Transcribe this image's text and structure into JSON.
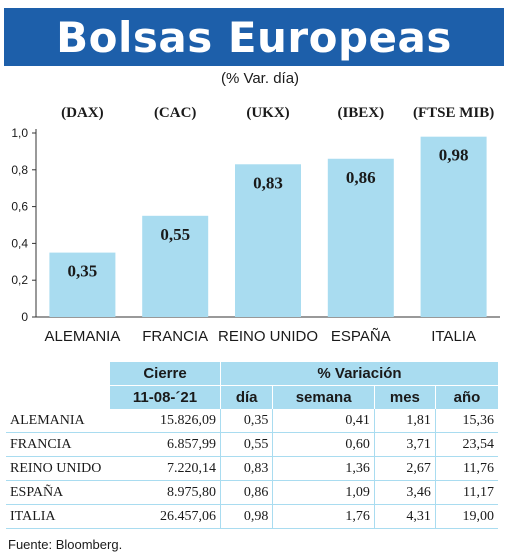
{
  "title": "Bolsas Europeas",
  "subtitle": "(% Var. día)",
  "chart_data": {
    "type": "bar",
    "title": "Bolsas Europeas",
    "subtitle": "(% Var. día)",
    "categories": [
      "ALEMANIA",
      "FRANCIA",
      "REINO UNIDO",
      "ESPAÑA",
      "ITALIA"
    ],
    "index_codes": [
      "(DAX)",
      "(CAC)",
      "(UKX)",
      "(IBEX)",
      "(FTSE MIB)"
    ],
    "values": [
      0.35,
      0.55,
      0.83,
      0.86,
      0.98
    ],
    "value_labels": [
      "0,35",
      "0,55",
      "0,83",
      "0,86",
      "0,98"
    ],
    "ylim": [
      0,
      1.0
    ],
    "yticks": [
      0,
      0.2,
      0.4,
      0.6,
      0.8,
      1.0
    ],
    "ytick_labels": [
      "0",
      "0,2",
      "0,4",
      "0,6",
      "0,8",
      "1,0"
    ],
    "bar_color": "#a9dcf0",
    "grid": false,
    "legend": "none"
  },
  "table": {
    "header_cierre": "Cierre",
    "header_variacion": "% Variación",
    "date": "11-08-´21",
    "columns": [
      "día",
      "semana",
      "mes",
      "año"
    ],
    "rows": [
      {
        "name": "ALEMANIA",
        "cierre": "15.826,09",
        "dia": "0,35",
        "semana": "0,41",
        "mes": "1,81",
        "ano": "15,36"
      },
      {
        "name": "FRANCIA",
        "cierre": "6.857,99",
        "dia": "0,55",
        "semana": "0,60",
        "mes": "3,71",
        "ano": "23,54"
      },
      {
        "name": "REINO UNIDO",
        "cierre": "7.220,14",
        "dia": "0,83",
        "semana": "1,36",
        "mes": "2,67",
        "ano": "11,76"
      },
      {
        "name": "ESPAÑA",
        "cierre": "8.975,80",
        "dia": "0,86",
        "semana": "1,09",
        "mes": "3,46",
        "ano": "11,17"
      },
      {
        "name": "ITALIA",
        "cierre": "26.457,06",
        "dia": "0,98",
        "semana": "1,76",
        "mes": "4,31",
        "ano": "19,00"
      }
    ]
  },
  "source": "Fuente: Bloomberg.",
  "colors": {
    "title_bg": "#1d5faa",
    "accent_light": "#a9dcf0"
  }
}
